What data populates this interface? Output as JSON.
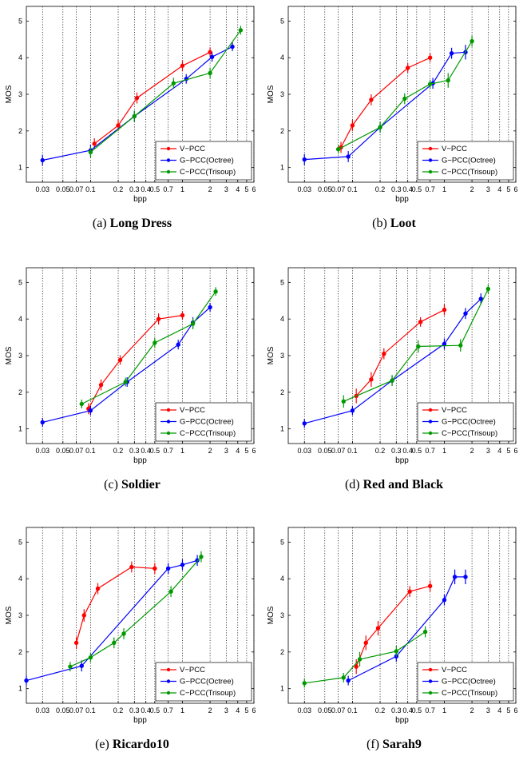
{
  "chart_data": [
    {
      "type": "line",
      "panel": "(a)",
      "caption_prefix": "(a)",
      "caption_name": "Long Dress",
      "xlabel": "bpp",
      "ylabel": "MOS",
      "xscale": "log",
      "xlim": [
        0.02,
        6
      ],
      "ylim": [
        0.6,
        5.4
      ],
      "x_tick_labels": [
        "0.03",
        "0.05",
        "0.07",
        "0.1",
        "0.2",
        "0.3",
        "0.4",
        "0.5",
        "0.7",
        "1",
        "2",
        "3",
        "4",
        "5",
        "6"
      ],
      "y_tick_labels": [
        "1",
        "2",
        "3",
        "4",
        "5"
      ],
      "grid": "x-only",
      "legend": "bottom-right",
      "series": [
        {
          "name": "V−PCC",
          "color": "#ff0000",
          "x": [
            0.11,
            0.2,
            0.32,
            1.0,
            2.0
          ],
          "y": [
            1.65,
            2.15,
            2.9,
            3.78,
            4.15
          ],
          "err": [
            0.15,
            0.15,
            0.15,
            0.15,
            0.13
          ]
        },
        {
          "name": "G−PCC(Octree)",
          "color": "#0000ff",
          "x": [
            0.03,
            0.1,
            0.3,
            1.1,
            2.1,
            3.5
          ],
          "y": [
            1.2,
            1.47,
            2.4,
            3.42,
            4.02,
            4.3
          ],
          "err": [
            0.15,
            0.15,
            0.15,
            0.13,
            0.13,
            0.12
          ]
        },
        {
          "name": "C−PCC(Trisoup)",
          "color": "#009900",
          "x": [
            0.1,
            0.3,
            0.8,
            2.0,
            4.3
          ],
          "y": [
            1.42,
            2.4,
            3.3,
            3.58,
            4.75
          ],
          "err": [
            0.15,
            0.15,
            0.15,
            0.15,
            0.12
          ]
        }
      ]
    },
    {
      "type": "line",
      "panel": "(b)",
      "caption_prefix": "(b)",
      "caption_name": "Loot",
      "xlabel": "bpp",
      "ylabel": "MOS",
      "xscale": "log",
      "xlim": [
        0.02,
        6
      ],
      "ylim": [
        0.6,
        5.4
      ],
      "x_tick_labels": [
        "0.03",
        "0.05",
        "0.07",
        "0.1",
        "0.2",
        "0.3",
        "0.4",
        "0.5",
        "0.7",
        "1",
        "2",
        "3",
        "4",
        "5",
        "6"
      ],
      "y_tick_labels": [
        "1",
        "2",
        "3",
        "4",
        "5"
      ],
      "grid": "x-only",
      "legend": "bottom-right",
      "series": [
        {
          "name": "V−PCC",
          "color": "#ff0000",
          "x": [
            0.075,
            0.1,
            0.16,
            0.4,
            0.7
          ],
          "y": [
            1.55,
            2.15,
            2.85,
            3.72,
            4.0
          ],
          "err": [
            0.15,
            0.15,
            0.15,
            0.13,
            0.12
          ]
        },
        {
          "name": "G−PCC(Octree)",
          "color": "#0000ff",
          "x": [
            0.03,
            0.09,
            0.2,
            0.75,
            1.2,
            1.7
          ],
          "y": [
            1.22,
            1.3,
            2.1,
            3.3,
            4.12,
            4.15
          ],
          "err": [
            0.15,
            0.15,
            0.15,
            0.15,
            0.15,
            0.2
          ]
        },
        {
          "name": "C−PCC(Trisoup)",
          "color": "#009900",
          "x": [
            0.07,
            0.2,
            0.37,
            0.7,
            1.1,
            2.0
          ],
          "y": [
            1.5,
            2.1,
            2.88,
            3.28,
            3.38,
            4.45
          ],
          "err": [
            0.12,
            0.15,
            0.15,
            0.12,
            0.2,
            0.15
          ]
        }
      ]
    },
    {
      "type": "line",
      "panel": "(c)",
      "caption_prefix": "(c)",
      "caption_name": "Soldier",
      "xlabel": "bpp",
      "ylabel": "MOS",
      "xscale": "log",
      "xlim": [
        0.02,
        6
      ],
      "ylim": [
        0.6,
        5.4
      ],
      "x_tick_labels": [
        "0.03",
        "0.05",
        "0.07",
        "0.1",
        "0.2",
        "0.3",
        "0.4",
        "0.5",
        "0.7",
        "1",
        "2",
        "3",
        "4",
        "5",
        "6"
      ],
      "y_tick_labels": [
        "1",
        "2",
        "3",
        "4",
        "5"
      ],
      "grid": "x-only",
      "legend": "bottom-right",
      "series": [
        {
          "name": "V−PCC",
          "color": "#ff0000",
          "x": [
            0.095,
            0.13,
            0.21,
            0.55,
            1.0
          ],
          "y": [
            1.55,
            2.2,
            2.88,
            4.0,
            4.1
          ],
          "err": [
            0.15,
            0.15,
            0.13,
            0.15,
            0.12
          ]
        },
        {
          "name": "G−PCC(Octree)",
          "color": "#0000ff",
          "x": [
            0.03,
            0.1,
            0.25,
            0.9,
            1.3,
            2.0
          ],
          "y": [
            1.18,
            1.5,
            2.28,
            3.3,
            3.9,
            4.32
          ],
          "err": [
            0.12,
            0.13,
            0.13,
            0.13,
            0.15,
            0.12
          ]
        },
        {
          "name": "C−PCC(Trisoup)",
          "color": "#009900",
          "x": [
            0.08,
            0.24,
            0.5,
            1.3,
            2.3
          ],
          "y": [
            1.68,
            2.28,
            3.35,
            3.87,
            4.75
          ],
          "err": [
            0.12,
            0.12,
            0.13,
            0.15,
            0.12
          ]
        }
      ]
    },
    {
      "type": "line",
      "panel": "(d)",
      "caption_prefix": "(d)",
      "caption_name": "Red and Black",
      "xlabel": "bpp",
      "ylabel": "MOS",
      "xscale": "log",
      "xlim": [
        0.02,
        6
      ],
      "ylim": [
        0.6,
        5.4
      ],
      "x_tick_labels": [
        "0.03",
        "0.05",
        "0.07",
        "0.1",
        "0.2",
        "0.3",
        "0.4",
        "0.5",
        "0.7",
        "1",
        "2",
        "3",
        "4",
        "5",
        "6"
      ],
      "y_tick_labels": [
        "1",
        "2",
        "3",
        "4",
        "5"
      ],
      "grid": "x-only",
      "legend": "bottom-right",
      "series": [
        {
          "name": "V−PCC",
          "color": "#ff0000",
          "x": [
            0.11,
            0.16,
            0.22,
            0.55,
            1.0
          ],
          "y": [
            1.9,
            2.35,
            3.05,
            3.92,
            4.25
          ],
          "err": [
            0.2,
            0.2,
            0.15,
            0.13,
            0.15
          ]
        },
        {
          "name": "G−PCC(Octree)",
          "color": "#0000ff",
          "x": [
            0.03,
            0.1,
            0.27,
            1.0,
            1.7,
            2.5
          ],
          "y": [
            1.15,
            1.5,
            2.32,
            3.32,
            4.15,
            4.55
          ],
          "err": [
            0.12,
            0.13,
            0.13,
            0.15,
            0.15,
            0.15
          ]
        },
        {
          "name": "C−PCC(Trisoup)",
          "color": "#009900",
          "x": [
            0.08,
            0.27,
            0.52,
            1.5,
            3.0
          ],
          "y": [
            1.75,
            2.32,
            3.25,
            3.28,
            4.82
          ],
          "err": [
            0.17,
            0.15,
            0.17,
            0.17,
            0.12
          ]
        }
      ]
    },
    {
      "type": "line",
      "panel": "(e)",
      "caption_prefix": "(e)",
      "caption_name": "Ricardo10",
      "xlabel": "bpp",
      "ylabel": "MOS",
      "xscale": "log",
      "xlim": [
        0.02,
        6
      ],
      "ylim": [
        0.6,
        5.4
      ],
      "x_tick_labels": [
        "0.03",
        "0.05",
        "0.07",
        "0.1",
        "0.2",
        "0.3",
        "0.4",
        "0.5",
        "0.7",
        "1",
        "2",
        "3",
        "4",
        "5",
        "6"
      ],
      "y_tick_labels": [
        "1",
        "2",
        "3",
        "4",
        "5"
      ],
      "grid": "x-only",
      "legend": "bottom-right",
      "series": [
        {
          "name": "V−PCC",
          "color": "#ff0000",
          "x": [
            0.07,
            0.085,
            0.12,
            0.28,
            0.5
          ],
          "y": [
            2.25,
            3.0,
            3.73,
            4.32,
            4.28
          ],
          "err": [
            0.17,
            0.17,
            0.15,
            0.15,
            0.15
          ]
        },
        {
          "name": "G−PCC(Octree)",
          "color": "#0000ff",
          "x": [
            0.02,
            0.08,
            0.7,
            1.0,
            1.45
          ],
          "y": [
            1.22,
            1.62,
            4.28,
            4.38,
            4.5
          ],
          "err": [
            0.13,
            0.15,
            0.15,
            0.15,
            0.15
          ]
        },
        {
          "name": "C−PCC(Trisoup)",
          "color": "#009900",
          "x": [
            0.06,
            0.1,
            0.18,
            0.23,
            0.75,
            1.6
          ],
          "y": [
            1.6,
            1.85,
            2.25,
            2.5,
            3.65,
            4.6
          ],
          "err": [
            0.13,
            0.13,
            0.15,
            0.15,
            0.15,
            0.15
          ]
        }
      ]
    },
    {
      "type": "line",
      "panel": "(f)",
      "caption_prefix": "(f)",
      "caption_name": "Sarah9",
      "xlabel": "bpp",
      "ylabel": "MOS",
      "xscale": "log",
      "xlim": [
        0.02,
        6
      ],
      "ylim": [
        0.6,
        5.4
      ],
      "x_tick_labels": [
        "0.03",
        "0.05",
        "0.07",
        "0.1",
        "0.2",
        "0.3",
        "0.4",
        "0.5",
        "0.7",
        "1",
        "2",
        "3",
        "4",
        "5",
        "6"
      ],
      "y_tick_labels": [
        "1",
        "2",
        "3",
        "4",
        "5"
      ],
      "grid": "x-only",
      "legend": "bottom-right",
      "series": [
        {
          "name": "V−PCC",
          "color": "#ff0000",
          "x": [
            0.11,
            0.14,
            0.19,
            0.42,
            0.7
          ],
          "y": [
            1.6,
            2.25,
            2.65,
            3.65,
            3.8
          ],
          "err": [
            0.2,
            0.2,
            0.2,
            0.15,
            0.15
          ]
        },
        {
          "name": "G−PCC(Octree)",
          "color": "#0000ff",
          "x": [
            0.09,
            0.3,
            1.0,
            1.3,
            1.7
          ],
          "y": [
            1.22,
            1.88,
            3.42,
            4.05,
            4.05
          ],
          "err": [
            0.13,
            0.15,
            0.15,
            0.2,
            0.2
          ]
        },
        {
          "name": "C−PCC(Trisoup)",
          "color": "#009900",
          "x": [
            0.03,
            0.08,
            0.12,
            0.3,
            0.62
          ],
          "y": [
            1.15,
            1.3,
            1.8,
            2.02,
            2.55
          ],
          "err": [
            0.12,
            0.13,
            0.2,
            0.15,
            0.15
          ]
        }
      ]
    }
  ]
}
